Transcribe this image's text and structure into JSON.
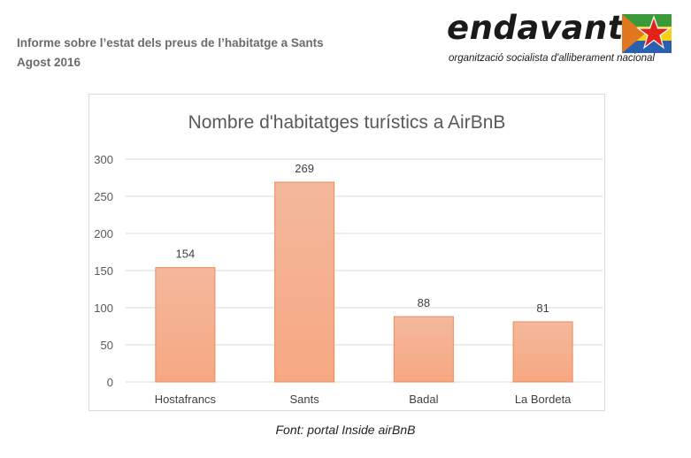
{
  "header": {
    "line1": "Informe sobre l’estat dels preus de l’habitatge a Sants",
    "line2": "Agost 2016"
  },
  "logo": {
    "word": "endavant",
    "tagline": "organització socialista d'alliberament nacional",
    "colors": [
      "#e2231a",
      "#f7d117",
      "#3a9a3a",
      "#2a60b0",
      "#e07820"
    ]
  },
  "chart_data": {
    "type": "bar",
    "title": "Nombre d'habitatges turístics a AirBnB",
    "categories": [
      "Hostafrancs",
      "Sants",
      "Badal",
      "La Bordeta"
    ],
    "values": [
      154,
      269,
      88,
      81
    ],
    "xlabel": "",
    "ylabel": "",
    "ylim": [
      0,
      300
    ],
    "yticks": [
      0,
      50,
      100,
      150,
      200,
      250,
      300
    ],
    "grid": true,
    "legend": "none",
    "bar_color_top": "#f4b89c",
    "bar_color_bottom": "#f6a882",
    "bar_border": "#ef8a5a"
  },
  "caption": "Font: portal Inside airBnB"
}
